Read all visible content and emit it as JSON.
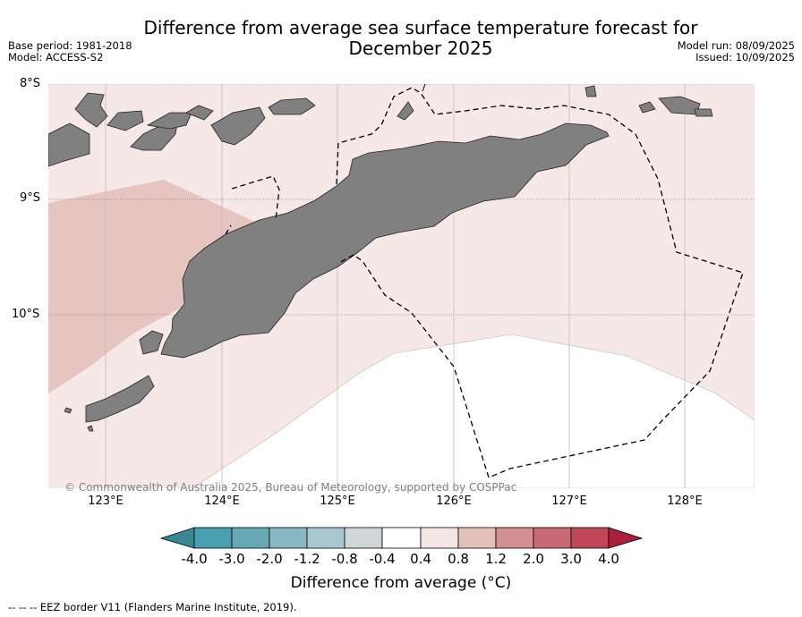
{
  "title_line1": "Difference from average sea surface temperature forecast for",
  "title_line2": "December 2025",
  "meta_left": [
    "Base period: 1981-2018",
    "Model: ACCESS-S2"
  ],
  "meta_right": [
    "Model run: 08/09/2025",
    "Issued: 10/09/2025"
  ],
  "lat_labels": [
    "8°S",
    "9°S",
    "10°S"
  ],
  "lon_labels": [
    "123°E",
    "124°E",
    "125°E",
    "126°E",
    "127°E",
    "128°E"
  ],
  "copyright": "© Commonwealth of Australia 2025, Bureau of Meteorology, supported by COSPPac",
  "colorbar": {
    "ticks": [
      "-4.0",
      "-3.0",
      "-2.0",
      "-1.2",
      "-0.8",
      "-0.4",
      "0.4",
      "0.8",
      "1.2",
      "2.0",
      "3.0",
      "4.0"
    ],
    "colors": [
      "#3a8794",
      "#4aa0ae",
      "#67a8b5",
      "#88b8c3",
      "#a8c8cd",
      "#d0d5d7",
      "#ffffff",
      "#f3e6e4",
      "#e4c2bc",
      "#d38f94",
      "#c86a73",
      "#bf4757",
      "#a8203b"
    ],
    "title": "Difference from average ($^\\circ$C)",
    "title_display": "Difference from average (°C)"
  },
  "legend_note": "--  --  -- EEZ border V11 (Flanders Marine Institute, 2019).",
  "map_colors": {
    "land": "#808080",
    "band_0_4_0_8": "#f5e8e6",
    "band_0_8_1_2": "#e6c5c0",
    "neutral": "#ffffff"
  }
}
